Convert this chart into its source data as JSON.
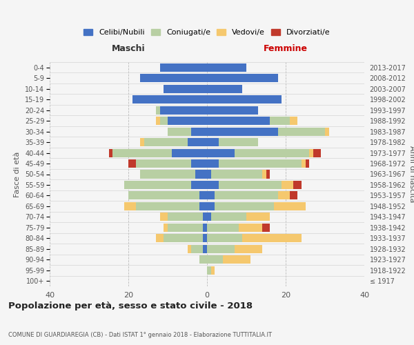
{
  "age_groups": [
    "100+",
    "95-99",
    "90-94",
    "85-89",
    "80-84",
    "75-79",
    "70-74",
    "65-69",
    "60-64",
    "55-59",
    "50-54",
    "45-49",
    "40-44",
    "35-39",
    "30-34",
    "25-29",
    "20-24",
    "15-19",
    "10-14",
    "5-9",
    "0-4"
  ],
  "birth_years": [
    "≤ 1917",
    "1918-1922",
    "1923-1927",
    "1928-1932",
    "1933-1937",
    "1938-1942",
    "1943-1947",
    "1948-1952",
    "1953-1957",
    "1958-1962",
    "1963-1967",
    "1968-1972",
    "1973-1977",
    "1978-1982",
    "1983-1987",
    "1988-1992",
    "1993-1997",
    "1998-2002",
    "2003-2007",
    "2008-2012",
    "2013-2017"
  ],
  "maschi": {
    "celibi": [
      0,
      0,
      0,
      1,
      1,
      1,
      1,
      2,
      2,
      4,
      3,
      4,
      9,
      5,
      4,
      10,
      12,
      19,
      11,
      17,
      12
    ],
    "coniugati": [
      0,
      0,
      2,
      3,
      10,
      9,
      9,
      16,
      18,
      17,
      14,
      14,
      15,
      11,
      6,
      2,
      1,
      0,
      0,
      0,
      0
    ],
    "vedovi": [
      0,
      0,
      0,
      1,
      2,
      1,
      2,
      3,
      0,
      0,
      0,
      0,
      0,
      1,
      0,
      1,
      0,
      0,
      0,
      0,
      0
    ],
    "divorziati": [
      0,
      0,
      0,
      0,
      0,
      0,
      0,
      0,
      0,
      0,
      0,
      2,
      1,
      0,
      0,
      0,
      0,
      0,
      0,
      0,
      0
    ]
  },
  "femmine": {
    "nubili": [
      0,
      0,
      0,
      0,
      0,
      0,
      1,
      2,
      2,
      3,
      1,
      3,
      7,
      3,
      18,
      16,
      13,
      19,
      9,
      18,
      10
    ],
    "coniugate": [
      0,
      1,
      4,
      7,
      9,
      8,
      9,
      15,
      16,
      16,
      13,
      21,
      19,
      10,
      12,
      5,
      0,
      0,
      0,
      0,
      0
    ],
    "vedove": [
      0,
      1,
      7,
      7,
      15,
      6,
      6,
      8,
      3,
      3,
      1,
      1,
      1,
      0,
      1,
      2,
      0,
      0,
      0,
      0,
      0
    ],
    "divorziate": [
      0,
      0,
      0,
      0,
      0,
      2,
      0,
      0,
      2,
      2,
      1,
      1,
      2,
      0,
      0,
      0,
      0,
      0,
      0,
      0,
      0
    ]
  },
  "colors": {
    "celibi": "#4472C4",
    "coniugati": "#b8cfa3",
    "vedovi": "#f5c86e",
    "divorziati": "#c0392b"
  },
  "legend_labels": [
    "Celibi/Nubili",
    "Coniugati/e",
    "Vedovi/e",
    "Divorziati/e"
  ],
  "title": "Popolazione per età, sesso e stato civile - 2018",
  "subtitle": "COMUNE DI GUARDIAREGIA (CB) - Dati ISTAT 1° gennaio 2018 - Elaborazione TUTTITALIA.IT",
  "ylabel_left": "Fasce di età",
  "ylabel_right": "Anni di nascita",
  "xlabel_left": "Maschi",
  "xlabel_right": "Femmine",
  "xlim": 40,
  "background_color": "#f5f5f5"
}
